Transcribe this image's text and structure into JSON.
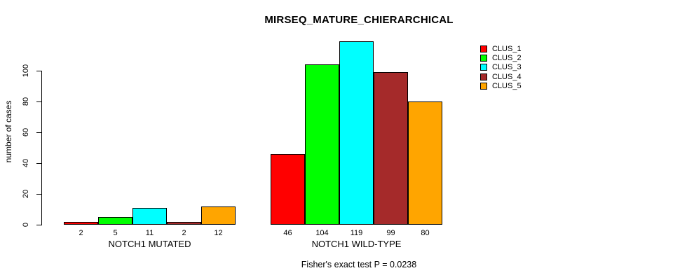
{
  "chart_data": {
    "type": "bar",
    "title": "MIRSEQ_MATURE_CHIERARCHICAL",
    "ylabel": "number of cases",
    "xlabel": "",
    "ylim": [
      0,
      100
    ],
    "yticks": [
      0,
      20,
      40,
      60,
      80,
      100
    ],
    "grid": false,
    "legend_position": "right",
    "series": [
      {
        "name": "CLUS_1",
        "color": "#FF0000"
      },
      {
        "name": "CLUS_2",
        "color": "#00FF00"
      },
      {
        "name": "CLUS_3",
        "color": "#00FFFF"
      },
      {
        "name": "CLUS_4",
        "color": "#A52A2A"
      },
      {
        "name": "CLUS_5",
        "color": "#FFA500"
      }
    ],
    "groups": [
      {
        "label": "NOTCH1 MUTATED",
        "values": [
          2,
          5,
          11,
          2,
          12
        ]
      },
      {
        "label": "NOTCH1 WILD-TYPE",
        "values": [
          46,
          104,
          119,
          99,
          80
        ]
      }
    ],
    "note": "Fisher's exact test P = 0.0238"
  }
}
